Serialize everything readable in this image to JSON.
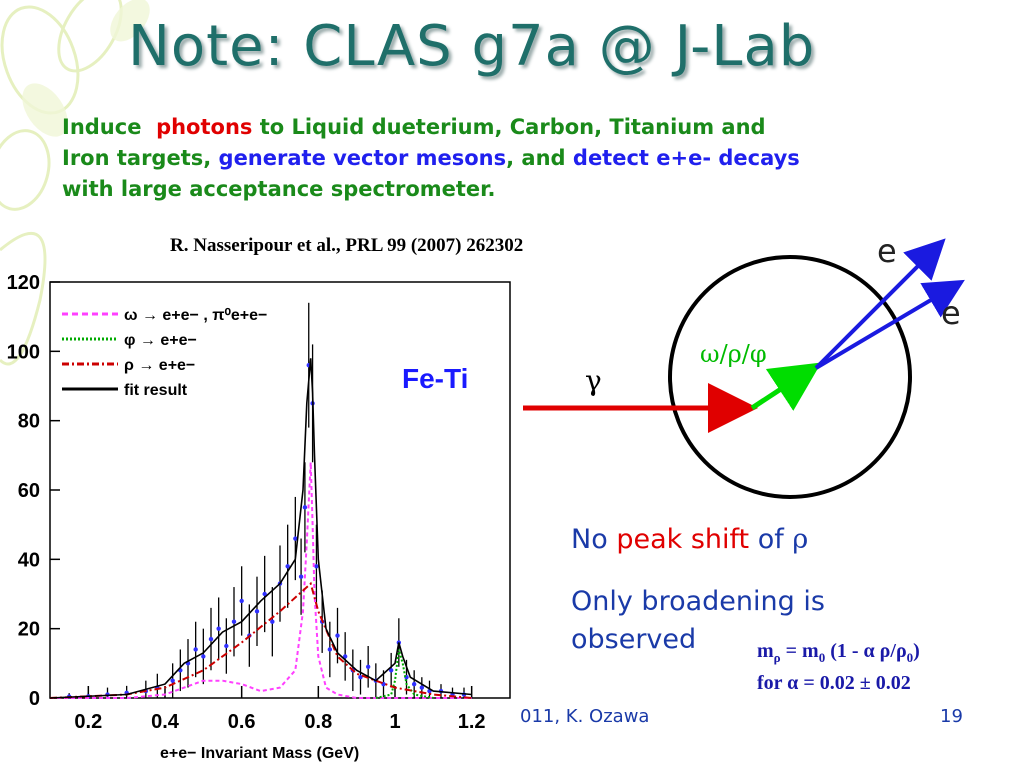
{
  "slide": {
    "title": "Note: CLAS g7a @ J-Lab",
    "intro": {
      "w1": "Induce",
      "w2": "photons",
      "w3": "to Liquid dueterium, Carbon, Titanium and",
      "w4": "Iron  targets,",
      "w5": "generate vector mesons",
      "w6": ", and",
      "w7": "detect e+e- decays",
      "w8": "with large acceptance spectrometer."
    },
    "reference": "R. Nasseripour et al., PRL 99 (2007) 262302",
    "note1": {
      "a": "No",
      "b": "peak shift",
      "c": "of",
      "d": "ρ"
    },
    "note2": "Only broadening is",
    "note3": "observed",
    "formula": {
      "m": "m",
      "rho": "ρ",
      "eq": " = m",
      "zero": "0",
      "mid": " (1 - α ρ/ρ",
      "zero2": "0",
      "close": ")",
      "line2": "for α = 0.02 ± 0.02"
    },
    "footer_left": "011, K. Ozawa",
    "footer_page": "19"
  },
  "diagram": {
    "gamma": "γ",
    "meson": "ω/ρ/φ",
    "e1": "e",
    "e2": "e"
  },
  "chart_data": {
    "type": "line",
    "panel_label": "Fe-Ti",
    "xlabel": "e+e− Invariant Mass (GeV)",
    "ylabel": "",
    "xlim": [
      0.1,
      1.3
    ],
    "ylim": [
      0,
      120
    ],
    "xticks": [
      "0.2",
      "0.4",
      "0.6",
      "0.8",
      "1",
      "1.2"
    ],
    "yticks": [
      "0",
      "20",
      "40",
      "60",
      "80",
      "100",
      "120"
    ],
    "legend": [
      {
        "label": "ω → e+e− , π⁰e+e−",
        "color": "#ff40ff",
        "dash": "6,4"
      },
      {
        "label": "φ → e+e−",
        "color": "#00aa00",
        "dash": "2,2"
      },
      {
        "label": "ρ → e+e−",
        "color": "#cc0000",
        "dash": "7,3,2,3"
      },
      {
        "label": "fit result",
        "color": "#000000",
        "dash": ""
      }
    ],
    "series": [
      {
        "name": "ω → e+e− , π⁰e+e−",
        "color": "#ff40ff",
        "dash": "4,3",
        "x": [
          0.1,
          0.3,
          0.4,
          0.45,
          0.5,
          0.55,
          0.6,
          0.65,
          0.7,
          0.74,
          0.76,
          0.77,
          0.78,
          0.785,
          0.79,
          0.8,
          0.82,
          0.85,
          0.9,
          1.0,
          1.2
        ],
        "y": [
          0,
          0,
          1,
          3,
          5,
          5,
          4,
          2,
          3,
          8,
          25,
          45,
          68,
          50,
          30,
          12,
          3,
          1,
          0,
          0,
          0
        ]
      },
      {
        "name": "φ → e+e−",
        "color": "#00aa00",
        "dash": "2,2",
        "x": [
          0.95,
          0.99,
          1.0,
          1.01,
          1.02,
          1.03,
          1.05,
          1.1
        ],
        "y": [
          0,
          1,
          5,
          14,
          10,
          4,
          1,
          0
        ]
      },
      {
        "name": "ρ → e+e−",
        "color": "#cc0000",
        "dash": "7,3,2,3",
        "x": [
          0.1,
          0.3,
          0.4,
          0.5,
          0.6,
          0.7,
          0.75,
          0.78,
          0.8,
          0.85,
          0.9,
          1.0,
          1.1,
          1.2
        ],
        "y": [
          0,
          1,
          3,
          8,
          16,
          25,
          30,
          33,
          25,
          12,
          7,
          3,
          1,
          0
        ]
      },
      {
        "name": "fit result",
        "color": "#000000",
        "dash": "",
        "x": [
          0.1,
          0.3,
          0.4,
          0.45,
          0.5,
          0.55,
          0.6,
          0.65,
          0.7,
          0.74,
          0.76,
          0.77,
          0.78,
          0.785,
          0.79,
          0.8,
          0.82,
          0.85,
          0.9,
          0.95,
          1.0,
          1.01,
          1.02,
          1.04,
          1.1,
          1.2
        ],
        "y": [
          0,
          1,
          4,
          10,
          13,
          19,
          22,
          28,
          33,
          40,
          60,
          85,
          98,
          88,
          70,
          40,
          20,
          13,
          8,
          5,
          10,
          16,
          12,
          6,
          2,
          1
        ]
      }
    ],
    "points": [
      {
        "x": 0.15,
        "y": 0.4,
        "err": 1
      },
      {
        "x": 0.2,
        "y": 0.5,
        "err": 1
      },
      {
        "x": 0.25,
        "y": 1,
        "err": 2
      },
      {
        "x": 0.3,
        "y": 1.5,
        "err": 2
      },
      {
        "x": 0.35,
        "y": 2,
        "err": 3
      },
      {
        "x": 0.38,
        "y": 3,
        "err": 4
      },
      {
        "x": 0.42,
        "y": 5,
        "err": 5
      },
      {
        "x": 0.44,
        "y": 8,
        "err": 6
      },
      {
        "x": 0.46,
        "y": 10,
        "err": 7
      },
      {
        "x": 0.48,
        "y": 14,
        "err": 8
      },
      {
        "x": 0.5,
        "y": 12,
        "err": 8
      },
      {
        "x": 0.52,
        "y": 17,
        "err": 9
      },
      {
        "x": 0.54,
        "y": 20,
        "err": 9
      },
      {
        "x": 0.56,
        "y": 15,
        "err": 8
      },
      {
        "x": 0.58,
        "y": 22,
        "err": 10
      },
      {
        "x": 0.6,
        "y": 28,
        "err": 10
      },
      {
        "x": 0.62,
        "y": 18,
        "err": 9
      },
      {
        "x": 0.64,
        "y": 25,
        "err": 10
      },
      {
        "x": 0.66,
        "y": 30,
        "err": 11
      },
      {
        "x": 0.68,
        "y": 22,
        "err": 10
      },
      {
        "x": 0.7,
        "y": 33,
        "err": 11
      },
      {
        "x": 0.72,
        "y": 38,
        "err": 12
      },
      {
        "x": 0.74,
        "y": 46,
        "err": 12
      },
      {
        "x": 0.755,
        "y": 35,
        "err": 11
      },
      {
        "x": 0.765,
        "y": 55,
        "err": 13
      },
      {
        "x": 0.775,
        "y": 96,
        "err": 18
      },
      {
        "x": 0.785,
        "y": 85,
        "err": 17
      },
      {
        "x": 0.795,
        "y": 38,
        "err": 12
      },
      {
        "x": 0.81,
        "y": 22,
        "err": 9
      },
      {
        "x": 0.83,
        "y": 14,
        "err": 8
      },
      {
        "x": 0.85,
        "y": 18,
        "err": 8
      },
      {
        "x": 0.87,
        "y": 12,
        "err": 7
      },
      {
        "x": 0.89,
        "y": 8,
        "err": 6
      },
      {
        "x": 0.91,
        "y": 6,
        "err": 5
      },
      {
        "x": 0.93,
        "y": 9,
        "err": 6
      },
      {
        "x": 0.95,
        "y": 5,
        "err": 5
      },
      {
        "x": 0.97,
        "y": 4,
        "err": 4
      },
      {
        "x": 0.99,
        "y": 8,
        "err": 5
      },
      {
        "x": 1.01,
        "y": 16,
        "err": 7
      },
      {
        "x": 1.03,
        "y": 6,
        "err": 5
      },
      {
        "x": 1.05,
        "y": 4,
        "err": 4
      },
      {
        "x": 1.07,
        "y": 3,
        "err": 3
      },
      {
        "x": 1.09,
        "y": 2,
        "err": 3
      },
      {
        "x": 1.12,
        "y": 2,
        "err": 2
      },
      {
        "x": 1.15,
        "y": 1,
        "err": 2
      },
      {
        "x": 1.18,
        "y": 1,
        "err": 2
      }
    ],
    "grid": false,
    "legend_position": "top-left"
  }
}
